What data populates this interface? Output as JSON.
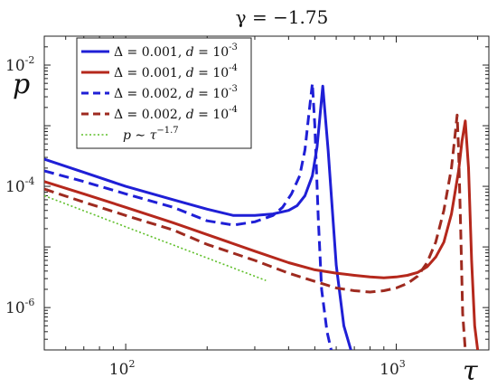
{
  "chart_data": {
    "type": "line",
    "title": "γ = −1.75",
    "xlabel": "τ",
    "ylabel": "p",
    "x_scale": "log",
    "y_scale": "log",
    "xlim": [
      50,
      2200
    ],
    "ylim": [
      2e-07,
      0.03
    ],
    "x_ticks": [
      {
        "value": 100,
        "base": "10",
        "exp": "2"
      },
      {
        "value": 1000,
        "base": "10",
        "exp": "3"
      }
    ],
    "y_ticks": [
      {
        "value": 0.01,
        "base": "10",
        "exp": "-2"
      },
      {
        "value": 0.0001,
        "base": "10",
        "exp": "-4"
      },
      {
        "value": 1e-06,
        "base": "10",
        "exp": "-6"
      }
    ],
    "grid": false,
    "legend_position": "top-left",
    "series": [
      {
        "legend": {
          "delta": "0.001",
          "d_exp": "-3"
        },
        "color": "#1f1fd6",
        "dash": "solid",
        "x": [
          50,
          70,
          100,
          150,
          200,
          250,
          300,
          350,
          400,
          430,
          460,
          490,
          510,
          535,
          560,
          600,
          640,
          680
        ],
        "y": [
          0.00028,
          0.00017,
          0.0001,
          6e-05,
          4.2e-05,
          3.3e-05,
          3.3e-05,
          3.5e-05,
          4e-05,
          4.8e-05,
          7e-05,
          0.00015,
          0.00045,
          0.0045,
          0.0004,
          5e-06,
          5e-07,
          2e-07
        ]
      },
      {
        "legend": {
          "delta": "0.001",
          "d_exp": "-4"
        },
        "color": "#b5281c",
        "dash": "solid",
        "x": [
          50,
          70,
          100,
          150,
          200,
          300,
          400,
          500,
          600,
          700,
          800,
          900,
          1000,
          1100,
          1200,
          1300,
          1400,
          1500,
          1600,
          1700,
          1750,
          1800,
          1850,
          1900,
          1950,
          2000
        ],
        "y": [
          0.00012,
          7.5e-05,
          4.5e-05,
          2.5e-05,
          1.6e-05,
          8.5e-06,
          5.5e-06,
          4.2e-06,
          3.7e-06,
          3.4e-06,
          3.2e-06,
          3.1e-06,
          3.2e-06,
          3.4e-06,
          3.8e-06,
          4.7e-06,
          6.8e-06,
          1.2e-05,
          3.5e-05,
          0.00018,
          0.00055,
          0.0012,
          0.0002,
          6e-06,
          5e-07,
          2e-07
        ]
      },
      {
        "legend": {
          "delta": "0.002",
          "d_exp": "-3"
        },
        "color": "#1f1fd6",
        "dash": "dashed",
        "x": [
          50,
          70,
          100,
          150,
          200,
          250,
          300,
          350,
          380,
          410,
          440,
          460,
          475,
          490,
          500,
          515,
          530,
          555,
          575
        ],
        "y": [
          0.00018,
          0.00012,
          7.5e-05,
          4.5e-05,
          2.7e-05,
          2.3e-05,
          2.6e-05,
          3.3e-05,
          4.5e-05,
          7.5e-05,
          0.00015,
          0.0004,
          0.0015,
          0.005,
          0.001,
          3e-05,
          2e-06,
          4e-07,
          2e-07
        ]
      },
      {
        "legend": {
          "delta": "0.002",
          "d_exp": "-4"
        },
        "color": "#9e2a1f",
        "dash": "dashed",
        "x": [
          50,
          70,
          100,
          150,
          200,
          300,
          400,
          500,
          600,
          700,
          800,
          900,
          1000,
          1100,
          1200,
          1300,
          1400,
          1500,
          1600,
          1650,
          1680,
          1700,
          1730,
          1760,
          1800
        ],
        "y": [
          9e-05,
          5.5e-05,
          3.3e-05,
          1.9e-05,
          1.1e-05,
          6e-06,
          3.7e-06,
          2.7e-06,
          2.1e-06,
          1.9e-06,
          1.8e-06,
          1.9e-06,
          2.1e-06,
          2.5e-06,
          3.3e-06,
          5.5e-06,
          1.2e-05,
          4e-05,
          0.0002,
          0.0007,
          0.0015,
          0.0004,
          2e-05,
          8e-07,
          2e-07
        ]
      },
      {
        "legend": {
          "expr": "p ∼ τ",
          "exp": "−1.7"
        },
        "color": "#5fbf2a",
        "dash": "dotted",
        "x": [
          50,
          330
        ],
        "y": [
          7e-05,
          2.8e-06
        ]
      }
    ]
  }
}
